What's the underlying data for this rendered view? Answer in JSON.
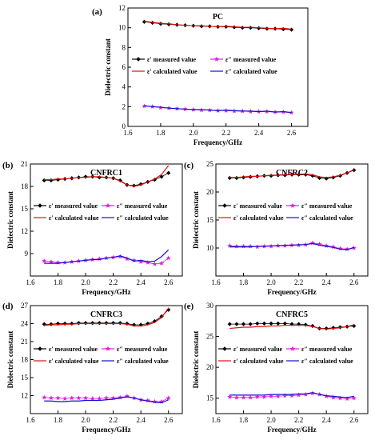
{
  "figure": {
    "charts": [
      {
        "panel": "(a)",
        "title": "PC",
        "ylabel": "Dielectric constant",
        "xlabel": "Frequency/GHz"
      },
      {
        "panel": "(b)",
        "title": "CNFRC1",
        "ylabel": "Dielectric constant",
        "xlabel": "Frequency/GHz"
      },
      {
        "panel": "(c)",
        "title": "CNFRC2",
        "ylabel": "Dielectric constant",
        "xlabel": "Frequency/GHz"
      },
      {
        "panel": "(d)",
        "title": "CNFRC3",
        "ylabel": "Dielectric constant",
        "xlabel": "Frequency/GHz"
      },
      {
        "panel": "(e)",
        "title": "CNFRC5",
        "ylabel": "Dielectric constant",
        "xlabel": "Frequency/GHz"
      }
    ]
  },
  "colors": {
    "eps_real_meas": "#000000",
    "eps_imag_meas": "#e020e0",
    "eps_real_calc": "#e01010",
    "eps_imag_calc": "#1010d0"
  },
  "chart_data": [
    {
      "type": "line",
      "panel": "(a)",
      "title": "PC",
      "xlabel": "Frequency/GHz",
      "ylabel": "Dielectric constant",
      "xlim": [
        1.6,
        2.7
      ],
      "ylim": [
        0,
        12
      ],
      "xticks": [
        "1.6",
        "1.8",
        "2.0",
        "2.2",
        "2.4",
        "2.6"
      ],
      "yticks": [
        "0",
        "2",
        "4",
        "6",
        "8",
        "10",
        "12"
      ],
      "legend_position": "center",
      "legend": [
        "ε′ measured value",
        "ε″ measured value",
        "ε′ calculated value",
        "ε″ calculated value"
      ],
      "x": [
        1.7,
        1.75,
        1.8,
        1.85,
        1.9,
        1.95,
        2.0,
        2.05,
        2.1,
        2.15,
        2.2,
        2.25,
        2.3,
        2.35,
        2.4,
        2.45,
        2.5,
        2.55,
        2.6
      ],
      "series": [
        {
          "name": "ε′ measured value",
          "values": [
            10.6,
            10.5,
            10.4,
            10.35,
            10.3,
            10.25,
            10.2,
            10.15,
            10.15,
            10.1,
            10.1,
            10.05,
            10.0,
            10.0,
            9.95,
            9.9,
            9.9,
            9.85,
            9.8
          ]
        },
        {
          "name": "ε″ measured value",
          "values": [
            2.05,
            2.0,
            1.9,
            1.85,
            1.8,
            1.75,
            1.7,
            1.65,
            1.65,
            1.6,
            1.6,
            1.55,
            1.55,
            1.5,
            1.5,
            1.5,
            1.45,
            1.45,
            1.4
          ]
        },
        {
          "name": "ε′ calculated value",
          "values": [
            10.65,
            10.55,
            10.45,
            10.4,
            10.3,
            10.25,
            10.2,
            10.2,
            10.15,
            10.1,
            10.15,
            10.1,
            10.05,
            10.05,
            10.0,
            9.95,
            9.9,
            9.95,
            9.85
          ]
        },
        {
          "name": "ε″ calculated value",
          "values": [
            2.1,
            2.0,
            1.95,
            1.85,
            1.8,
            1.75,
            1.7,
            1.7,
            1.65,
            1.6,
            1.65,
            1.6,
            1.55,
            1.55,
            1.5,
            1.55,
            1.45,
            1.5,
            1.4
          ]
        }
      ]
    },
    {
      "type": "line",
      "panel": "(b)",
      "title": "CNFRC1",
      "xlabel": "Frequency/GHz",
      "ylabel": "Dielectric constant",
      "xlim": [
        1.6,
        2.7
      ],
      "ylim": [
        6,
        21
      ],
      "xticks": [
        "1.6",
        "1.8",
        "2.0",
        "2.2",
        "2.4",
        "2.6"
      ],
      "yticks": [
        "9",
        "12",
        "15",
        "18",
        "21"
      ],
      "legend_position": "center",
      "legend": [
        "ε′ measured value",
        "ε″ measured value",
        "ε′ calculated value",
        "ε″ calculated value"
      ],
      "x": [
        1.7,
        1.75,
        1.8,
        1.85,
        1.9,
        1.95,
        2.0,
        2.05,
        2.1,
        2.15,
        2.2,
        2.25,
        2.3,
        2.35,
        2.4,
        2.45,
        2.5,
        2.55,
        2.6
      ],
      "series": [
        {
          "name": "ε′ measured value",
          "values": [
            18.8,
            18.8,
            18.9,
            19.0,
            19.1,
            19.2,
            19.3,
            19.3,
            19.2,
            19.2,
            19.1,
            18.8,
            18.2,
            18.1,
            18.3,
            18.6,
            18.9,
            19.3,
            19.8
          ]
        },
        {
          "name": "ε″ measured value",
          "values": [
            8.0,
            7.9,
            7.8,
            7.8,
            7.9,
            8.0,
            8.1,
            8.2,
            8.3,
            8.4,
            8.5,
            8.6,
            8.3,
            8.1,
            7.9,
            7.8,
            7.6,
            7.7,
            8.4
          ]
        },
        {
          "name": "ε′ calculated value",
          "values": [
            18.9,
            18.9,
            19.0,
            19.0,
            19.1,
            19.2,
            19.2,
            19.3,
            19.3,
            19.2,
            19.1,
            18.7,
            18.2,
            18.0,
            18.2,
            18.6,
            19.0,
            19.6,
            20.8
          ]
        },
        {
          "name": "ε″ calculated value",
          "values": [
            7.7,
            7.7,
            7.7,
            7.8,
            7.9,
            8.0,
            8.1,
            8.2,
            8.2,
            8.4,
            8.5,
            8.7,
            8.4,
            8.0,
            8.1,
            7.9,
            8.0,
            8.6,
            9.5
          ]
        }
      ]
    },
    {
      "type": "line",
      "panel": "(c)",
      "title": "CNFRC2",
      "xlabel": "Frequency/GHz",
      "ylabel": "Dielectric constant",
      "xlim": [
        1.6,
        2.7
      ],
      "ylim": [
        5,
        25
      ],
      "xticks": [
        "1.6",
        "1.8",
        "2.0",
        "2.2",
        "2.4",
        "2.6"
      ],
      "yticks": [
        "10",
        "15",
        "20",
        "25"
      ],
      "legend_position": "center",
      "legend": [
        "ε′ measured value",
        "ε″ measured value",
        "ε′ calculated value",
        "ε″ calculated value"
      ],
      "x": [
        1.7,
        1.75,
        1.8,
        1.85,
        1.9,
        1.95,
        2.0,
        2.05,
        2.1,
        2.15,
        2.2,
        2.25,
        2.3,
        2.35,
        2.4,
        2.45,
        2.5,
        2.55,
        2.6
      ],
      "series": [
        {
          "name": "ε′ measured value",
          "values": [
            22.5,
            22.5,
            22.6,
            22.7,
            22.8,
            22.9,
            22.9,
            23.0,
            23.0,
            23.1,
            23.1,
            23.1,
            22.9,
            22.5,
            22.4,
            22.6,
            22.9,
            23.4,
            23.9
          ]
        },
        {
          "name": "ε″ measured value",
          "values": [
            10.4,
            10.3,
            10.3,
            10.3,
            10.2,
            10.3,
            10.3,
            10.4,
            10.4,
            10.5,
            10.5,
            10.6,
            10.9,
            10.7,
            10.4,
            10.2,
            9.9,
            9.8,
            10.0
          ]
        },
        {
          "name": "ε′ calculated value",
          "values": [
            22.6,
            22.6,
            22.7,
            22.8,
            22.8,
            22.9,
            23.0,
            23.0,
            23.1,
            23.1,
            23.2,
            23.2,
            23.1,
            22.7,
            22.6,
            22.7,
            23.0,
            23.4,
            24.0
          ]
        },
        {
          "name": "ε″ calculated value",
          "values": [
            10.2,
            10.2,
            10.2,
            10.2,
            10.3,
            10.3,
            10.4,
            10.4,
            10.5,
            10.5,
            10.6,
            10.6,
            10.8,
            10.5,
            10.3,
            10.1,
            9.8,
            9.7,
            10.1
          ]
        }
      ]
    },
    {
      "type": "line",
      "panel": "(d)",
      "title": "CNFRC3",
      "xlabel": "Frequency/GHz",
      "ylabel": "Dielectric constant",
      "xlim": [
        1.6,
        2.7
      ],
      "ylim": [
        9,
        27
      ],
      "xticks": [
        "1.6",
        "1.8",
        "2.0",
        "2.2",
        "2.4",
        "2.6"
      ],
      "yticks": [
        "12",
        "15",
        "18",
        "21",
        "24",
        "27"
      ],
      "legend_position": "center",
      "legend": [
        "ε′ measured value",
        "ε″ measured value",
        "ε′ calculated value",
        "ε″ calculated value"
      ],
      "x": [
        1.7,
        1.75,
        1.8,
        1.85,
        1.9,
        1.95,
        2.0,
        2.05,
        2.1,
        2.15,
        2.2,
        2.25,
        2.3,
        2.35,
        2.4,
        2.45,
        2.5,
        2.55,
        2.6
      ],
      "series": [
        {
          "name": "ε′ measured value",
          "values": [
            23.9,
            23.9,
            24.0,
            24.0,
            24.0,
            24.1,
            24.1,
            24.1,
            24.1,
            24.1,
            24.1,
            24.1,
            24.0,
            23.8,
            23.8,
            24.0,
            24.4,
            25.2,
            26.3
          ]
        },
        {
          "name": "ε″ measured value",
          "values": [
            11.7,
            11.6,
            11.6,
            11.5,
            11.6,
            11.6,
            11.6,
            11.5,
            11.5,
            11.6,
            11.6,
            11.7,
            11.9,
            11.6,
            11.3,
            11.2,
            11.0,
            11.0,
            11.6
          ]
        },
        {
          "name": "ε′ calculated value",
          "values": [
            23.7,
            23.8,
            23.8,
            23.9,
            23.9,
            24.0,
            24.0,
            24.0,
            24.0,
            24.0,
            24.0,
            24.0,
            23.9,
            23.6,
            23.6,
            23.8,
            24.2,
            25.0,
            26.6
          ]
        },
        {
          "name": "ε″ calculated value",
          "values": [
            11.1,
            11.1,
            11.0,
            11.0,
            11.1,
            11.1,
            11.2,
            11.2,
            11.2,
            11.3,
            11.4,
            11.6,
            11.8,
            11.6,
            11.3,
            11.1,
            10.9,
            10.8,
            11.3
          ]
        }
      ]
    },
    {
      "type": "line",
      "panel": "(e)",
      "title": "CNFRC5",
      "xlabel": "Frequency/GHz",
      "ylabel": "Dielectric constant",
      "xlim": [
        1.6,
        2.7
      ],
      "ylim": [
        12.5,
        30
      ],
      "xticks": [
        "1.6",
        "1.8",
        "2.0",
        "2.2",
        "2.4",
        "2.6"
      ],
      "yticks": [
        "15",
        "20",
        "25",
        "30"
      ],
      "legend_position": "center",
      "legend": [
        "ε′ measured value",
        "ε″ measured value",
        "ε′ calculated value",
        "ε″ calculated value"
      ],
      "x": [
        1.7,
        1.75,
        1.8,
        1.85,
        1.9,
        1.95,
        2.0,
        2.05,
        2.1,
        2.15,
        2.2,
        2.25,
        2.3,
        2.35,
        2.4,
        2.45,
        2.5,
        2.55,
        2.6
      ],
      "series": [
        {
          "name": "ε′ measured value",
          "values": [
            27.0,
            27.0,
            27.0,
            27.0,
            27.1,
            27.1,
            27.1,
            27.1,
            27.1,
            27.0,
            27.0,
            26.9,
            26.7,
            26.3,
            26.3,
            26.4,
            26.5,
            26.6,
            26.7
          ]
        },
        {
          "name": "ε″ measured value",
          "values": [
            15.2,
            15.1,
            15.1,
            15.1,
            15.2,
            15.2,
            15.3,
            15.3,
            15.4,
            15.4,
            15.5,
            15.6,
            15.8,
            15.6,
            15.3,
            15.1,
            15.0,
            14.9,
            15.0
          ]
        },
        {
          "name": "ε′ calculated value",
          "values": [
            26.3,
            26.4,
            26.5,
            26.5,
            26.6,
            26.6,
            26.7,
            26.7,
            26.8,
            26.8,
            26.8,
            26.8,
            26.6,
            26.3,
            26.2,
            26.3,
            26.4,
            26.6,
            26.9
          ]
        },
        {
          "name": "ε″ calculated value",
          "values": [
            15.5,
            15.5,
            15.5,
            15.5,
            15.5,
            15.5,
            15.6,
            15.6,
            15.6,
            15.6,
            15.7,
            15.7,
            15.9,
            15.6,
            15.4,
            15.3,
            15.2,
            15.1,
            15.3
          ]
        }
      ]
    }
  ]
}
